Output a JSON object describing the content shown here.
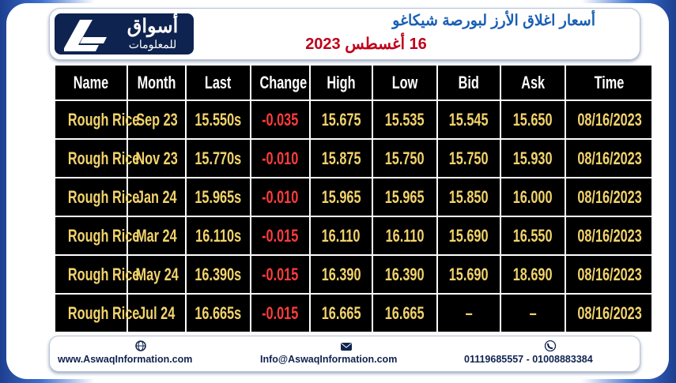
{
  "header": {
    "logo_name": "أسواق",
    "logo_sub": "للمعلومات",
    "title": "أسعار اغلاق الأرز لبورصة شيكاغو",
    "date": "16 أغسطس 2023"
  },
  "table": {
    "columns": [
      "Name",
      "Month",
      "Last",
      "Change",
      "High",
      "Low",
      "Bid",
      "Ask",
      "Time"
    ],
    "rows": [
      [
        "Rough Rice",
        "Sep 23",
        "15.550s",
        "-0.035",
        "15.675",
        "15.535",
        "15.545",
        "15.650",
        "08/16/2023"
      ],
      [
        "Rough Rice",
        "Nov 23",
        "15.770s",
        "-0.010",
        "15.875",
        "15.750",
        "15.750",
        "15.930",
        "08/16/2023"
      ],
      [
        "Rough Rice",
        "Jan 24",
        "15.965s",
        "-0.010",
        "15.965",
        "15.965",
        "15.850",
        "16.000",
        "08/16/2023"
      ],
      [
        "Rough Rice",
        "Mar 24",
        "16.110s",
        "-0.015",
        "16.110",
        "16.110",
        "15.690",
        "16.550",
        "08/16/2023"
      ],
      [
        "Rough Rice",
        "May 24",
        "16.390s",
        "-0.015",
        "16.390",
        "16.390",
        "15.690",
        "18.690",
        "08/16/2023"
      ],
      [
        "Rough Rice",
        "Jul 24",
        "16.665s",
        "-0.015",
        "16.665",
        "16.665",
        "–",
        "–",
        "08/16/2023"
      ]
    ]
  },
  "footer": {
    "website": "www.AswaqInformation.com",
    "email": "Info@AswaqInformation.com",
    "phone": "01119685557 - 01008883384"
  }
}
